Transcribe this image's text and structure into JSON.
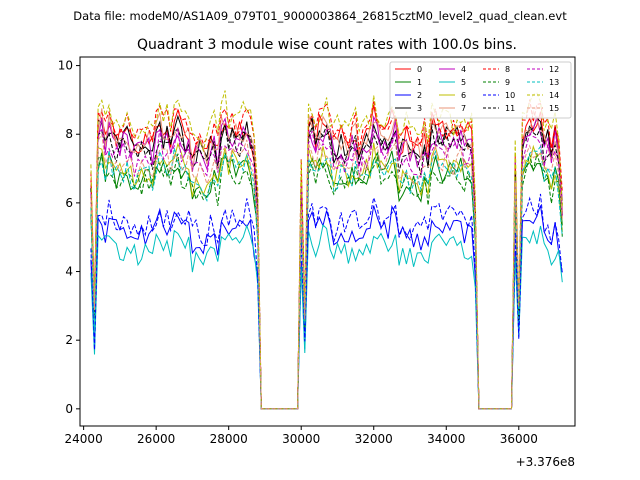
{
  "suptitle": "Data file: modeM0/AS1A09_079T01_9000003864_26815cztM0_level2_quad_clean.evt",
  "chart_data": {
    "type": "line",
    "title": "Quadrant 3 module wise count rates with 100.0s bins.",
    "xlabel": "",
    "ylabel": "",
    "offset_label": "+3.376e8",
    "xlim": [
      23900,
      37550
    ],
    "ylim": [
      -0.5,
      10.25
    ],
    "xticks": [
      24000,
      26000,
      28000,
      30000,
      32000,
      34000,
      36000
    ],
    "xtick_labels": [
      "24000",
      "26000",
      "28000",
      "30000",
      "32000",
      "34000",
      "36000"
    ],
    "yticks": [
      0,
      2,
      4,
      6,
      8,
      10
    ],
    "ytick_labels": [
      "0",
      "2",
      "4",
      "6",
      "8",
      "10"
    ],
    "grid": false,
    "legend_position": "top-right",
    "x_start": 24200,
    "bin": 100,
    "n_bins": 131,
    "segments": [
      {
        "x0": 24200,
        "x1": 28800,
        "shape": "orbit"
      },
      {
        "x0": 28900,
        "x1": 29900,
        "shape": "gap"
      },
      {
        "x0": 30000,
        "x1": 34800,
        "shape": "orbit"
      },
      {
        "x0": 34900,
        "x1": 35800,
        "shape": "gap"
      },
      {
        "x0": 35900,
        "x1": 37200,
        "shape": "orbit"
      }
    ],
    "series": [
      {
        "name": "0",
        "color": "#ff0000",
        "dash": "solid",
        "level": 8.2
      },
      {
        "name": "1",
        "color": "#008000",
        "dash": "solid",
        "level": 7.0
      },
      {
        "name": "2",
        "color": "#0000ff",
        "dash": "solid",
        "level": 5.4
      },
      {
        "name": "3",
        "color": "#000000",
        "dash": "solid",
        "level": 8.0
      },
      {
        "name": "4",
        "color": "#bf00bf",
        "dash": "solid",
        "level": 7.9
      },
      {
        "name": "5",
        "color": "#00bfbf",
        "dash": "solid",
        "level": 4.9
      },
      {
        "name": "6",
        "color": "#bfbf00",
        "dash": "solid",
        "level": 7.2
      },
      {
        "name": "7",
        "color": "#e9967a",
        "dash": "solid",
        "level": 8.1
      },
      {
        "name": "8",
        "color": "#ff0000",
        "dash": "dashed",
        "level": 8.4
      },
      {
        "name": "9",
        "color": "#008000",
        "dash": "dashed",
        "level": 6.9
      },
      {
        "name": "10",
        "color": "#0000ff",
        "dash": "dashed",
        "level": 5.7
      },
      {
        "name": "11",
        "color": "#000000",
        "dash": "dashed",
        "level": 7.8
      },
      {
        "name": "12",
        "color": "#bf00bf",
        "dash": "dashed",
        "level": 7.6
      },
      {
        "name": "13",
        "color": "#00bfbf",
        "dash": "dashed",
        "level": 7.1
      },
      {
        "name": "14",
        "color": "#bfbf00",
        "dash": "dashed",
        "level": 8.6
      },
      {
        "name": "15",
        "color": "#e9967a",
        "dash": "dashed",
        "level": 7.4
      }
    ]
  }
}
